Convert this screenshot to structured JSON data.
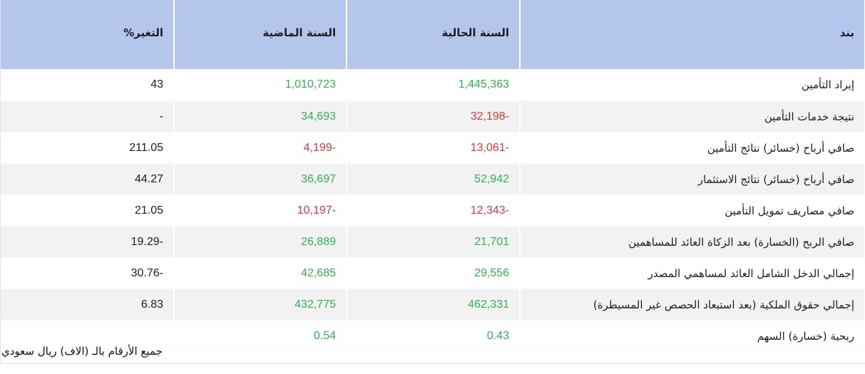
{
  "table": {
    "headers": {
      "item": "بند",
      "current_year": "السنة الحالية",
      "previous_year": "السنة الماضية",
      "change": "التغير%"
    },
    "rows": [
      {
        "item": "إيراد التأمين",
        "current": "1,445,363",
        "previous": "1,010,723",
        "change": "43"
      },
      {
        "item": "نتيجة خدمات التأمين",
        "current": "32,198-",
        "previous": "34,693",
        "change": "-"
      },
      {
        "item": "صافي أرباح (خسائر) نتائج التأمين",
        "current": "13,061-",
        "previous": "4,199-",
        "change": "211.05"
      },
      {
        "item": "صافي أرباح (خسائر) نتائج الاستثمار",
        "current": "52,942",
        "previous": "36,697",
        "change": "44.27"
      },
      {
        "item": "صافي مصاريف تمويل التأمين",
        "current": "12,343-",
        "previous": "10,197-",
        "change": "21.05"
      },
      {
        "item": "صافي الربح (الخسارة) بعد الزكاة العائد للمساهمين",
        "current": "21,701",
        "previous": "26,889",
        "change": "19.29-"
      },
      {
        "item": "إجمالي الدخل الشامل العائد لمساهمي المصدر",
        "current": "29,556",
        "previous": "42,685",
        "change": "30.76-"
      },
      {
        "item": "إجمالي حقوق الملكية (بعد استبعاد الحصص غير المسيطرة)",
        "current": "462,331",
        "previous": "432,775",
        "change": "6.83"
      },
      {
        "item": "ربحية (خسارة) السهم",
        "current": "0.43",
        "previous": "0.54",
        "change": ""
      }
    ]
  },
  "footnote": "جميع الأرقام بالـ (الاف) ريال سعودي",
  "colors": {
    "header_bg": "#b4c6ec",
    "positive": "#2db352",
    "negative": "#e0383a",
    "stripe": "#f2f2f2"
  }
}
